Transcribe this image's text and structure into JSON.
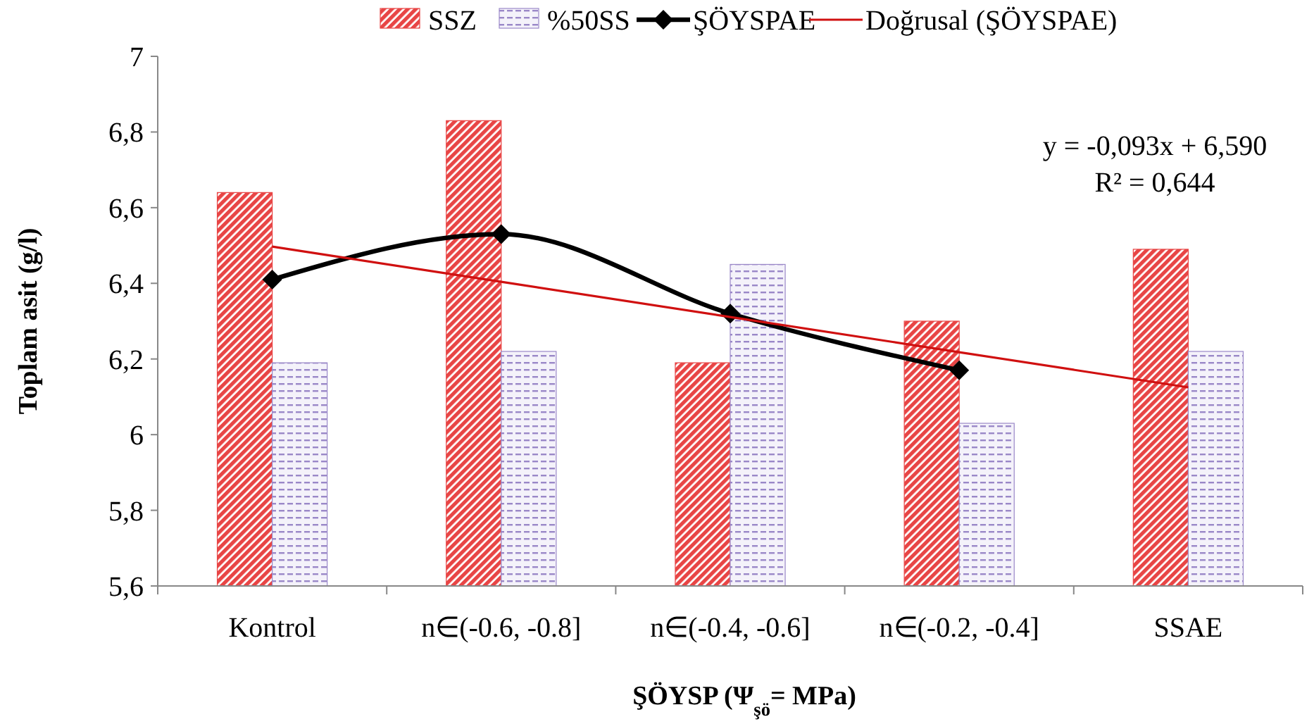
{
  "chart_data": {
    "type": "bar",
    "ylabel": "Toplam asit (g/l)",
    "xlabel": "ŞÖYSP (Ψ$_{şö}$= MPa)",
    "categories": [
      "Kontrol",
      "n∈(-0.6, -0.8]",
      "n∈(-0.4, -0.6]",
      "n∈(-0.2, -0.4]",
      "SSAE"
    ],
    "series": [
      {
        "name": "SSZ",
        "color": "#e84545",
        "values": [
          6.64,
          6.83,
          6.19,
          6.3,
          6.49
        ]
      },
      {
        "name": "%50SS",
        "color": "#9a88c8",
        "values": [
          6.19,
          6.22,
          6.45,
          6.03,
          6.22
        ]
      },
      {
        "name": "ŞÖYSPAE",
        "type": "line",
        "color": "#000000",
        "marker": "diamond",
        "values": [
          6.41,
          6.53,
          6.32,
          6.17,
          null
        ]
      },
      {
        "name": "Doğrusal (ŞÖYSPAE)",
        "type": "line",
        "color": "#d01010",
        "marker": "none",
        "values": [
          6.497,
          6.404,
          6.311,
          6.218,
          6.125
        ]
      }
    ],
    "ylim": [
      5.6,
      7
    ],
    "yticks": [
      {
        "value": 5.6,
        "label": "5,6"
      },
      {
        "value": 5.8,
        "label": "5,8"
      },
      6,
      {
        "value": 6.2,
        "label": "6,2"
      },
      {
        "value": 6.4,
        "label": "6,4"
      },
      {
        "value": 6.6,
        "label": "6,6"
      },
      {
        "value": 6.8,
        "label": "6,8"
      },
      7
    ],
    "annotations": [
      "y = -0,093x + 6,590",
      "R² = 0,644"
    ],
    "legend": "top",
    "grid": false
  }
}
